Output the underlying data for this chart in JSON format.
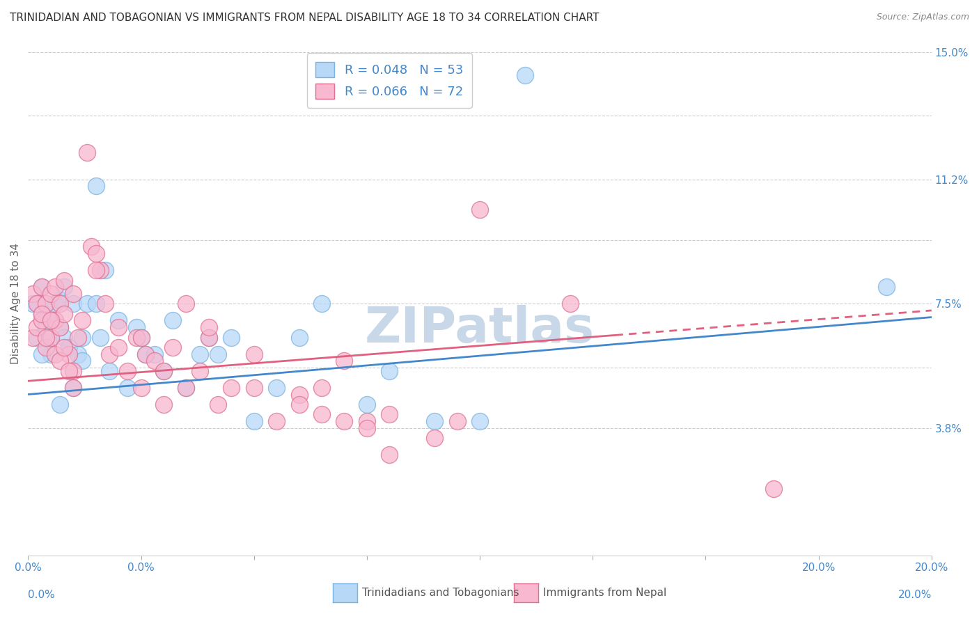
{
  "title": "TRINIDADIAN AND TOBAGONIAN VS IMMIGRANTS FROM NEPAL DISABILITY AGE 18 TO 34 CORRELATION CHART",
  "source": "Source: ZipAtlas.com",
  "ylabel": "Disability Age 18 to 34",
  "xlim": [
    0.0,
    0.2
  ],
  "ylim": [
    0.0,
    0.15
  ],
  "xtick_positions": [
    0.0,
    0.025,
    0.05,
    0.075,
    0.1,
    0.125,
    0.15,
    0.175,
    0.2
  ],
  "xtick_labels_show": {
    "0.0": "0.0%",
    "0.2": "20.0%"
  },
  "yticks": [
    0.0,
    0.038,
    0.056,
    0.075,
    0.094,
    0.112,
    0.131,
    0.15
  ],
  "ytick_labels": [
    "",
    "3.8%",
    "",
    "7.5%",
    "",
    "11.2%",
    "",
    "15.0%"
  ],
  "watermark": "ZIPatlas",
  "legend_entries": [
    {
      "label_r": "R = 0.048",
      "label_n": "N = 53",
      "face_color": "#b8d8f8",
      "edge_color": "#7ab3e0"
    },
    {
      "label_r": "R = 0.066",
      "label_n": "N = 72",
      "face_color": "#f8b8d0",
      "edge_color": "#e07090"
    }
  ],
  "bottom_legend": [
    {
      "label": "Trinidadians and Tobagonians",
      "face_color": "#b8d8f8",
      "edge_color": "#7ab3e0"
    },
    {
      "label": "Immigrants from Nepal",
      "face_color": "#f8b8d0",
      "edge_color": "#e07090"
    }
  ],
  "series": [
    {
      "name": "Trinidadians and Tobagonians",
      "edge_color": "#7ab3e0",
      "face_color": "#b8d8f8",
      "x": [
        0.001,
        0.002,
        0.002,
        0.003,
        0.003,
        0.004,
        0.004,
        0.005,
        0.005,
        0.005,
        0.006,
        0.006,
        0.007,
        0.007,
        0.008,
        0.008,
        0.009,
        0.01,
        0.01,
        0.011,
        0.012,
        0.012,
        0.013,
        0.015,
        0.016,
        0.017,
        0.018,
        0.02,
        0.022,
        0.024,
        0.025,
        0.026,
        0.028,
        0.03,
        0.032,
        0.035,
        0.038,
        0.04,
        0.042,
        0.045,
        0.05,
        0.055,
        0.06,
        0.065,
        0.075,
        0.08,
        0.09,
        0.1,
        0.11,
        0.19,
        0.015,
        0.007,
        0.003
      ],
      "y": [
        0.075,
        0.075,
        0.065,
        0.08,
        0.072,
        0.07,
        0.068,
        0.073,
        0.065,
        0.06,
        0.075,
        0.07,
        0.076,
        0.068,
        0.08,
        0.065,
        0.062,
        0.075,
        0.05,
        0.06,
        0.065,
        0.058,
        0.075,
        0.075,
        0.065,
        0.085,
        0.055,
        0.07,
        0.05,
        0.068,
        0.065,
        0.06,
        0.06,
        0.055,
        0.07,
        0.05,
        0.06,
        0.065,
        0.06,
        0.065,
        0.04,
        0.05,
        0.065,
        0.075,
        0.045,
        0.055,
        0.04,
        0.04,
        0.143,
        0.08,
        0.11,
        0.045,
        0.06
      ]
    },
    {
      "name": "Immigrants from Nepal",
      "edge_color": "#e07090",
      "face_color": "#f8b8d0",
      "x": [
        0.001,
        0.001,
        0.002,
        0.002,
        0.003,
        0.003,
        0.004,
        0.004,
        0.005,
        0.005,
        0.006,
        0.006,
        0.007,
        0.007,
        0.008,
        0.008,
        0.009,
        0.01,
        0.01,
        0.011,
        0.012,
        0.013,
        0.014,
        0.015,
        0.016,
        0.017,
        0.018,
        0.02,
        0.022,
        0.024,
        0.025,
        0.026,
        0.028,
        0.03,
        0.032,
        0.035,
        0.038,
        0.04,
        0.042,
        0.045,
        0.05,
        0.055,
        0.06,
        0.065,
        0.07,
        0.075,
        0.08,
        0.09,
        0.095,
        0.035,
        0.04,
        0.05,
        0.06,
        0.065,
        0.07,
        0.075,
        0.08,
        0.003,
        0.004,
        0.005,
        0.006,
        0.007,
        0.008,
        0.009,
        0.01,
        0.015,
        0.02,
        0.025,
        0.03,
        0.1,
        0.12,
        0.165
      ],
      "y": [
        0.078,
        0.065,
        0.075,
        0.068,
        0.08,
        0.07,
        0.075,
        0.062,
        0.078,
        0.065,
        0.08,
        0.07,
        0.075,
        0.068,
        0.082,
        0.072,
        0.06,
        0.078,
        0.055,
        0.065,
        0.07,
        0.12,
        0.092,
        0.09,
        0.085,
        0.075,
        0.06,
        0.068,
        0.055,
        0.065,
        0.065,
        0.06,
        0.058,
        0.055,
        0.062,
        0.05,
        0.055,
        0.065,
        0.045,
        0.05,
        0.05,
        0.04,
        0.048,
        0.05,
        0.058,
        0.04,
        0.042,
        0.035,
        0.04,
        0.075,
        0.068,
        0.06,
        0.045,
        0.042,
        0.04,
        0.038,
        0.03,
        0.072,
        0.065,
        0.07,
        0.06,
        0.058,
        0.062,
        0.055,
        0.05,
        0.085,
        0.062,
        0.05,
        0.045,
        0.103,
        0.075,
        0.02
      ]
    }
  ],
  "trend_blue": {
    "x_start": 0.0,
    "y_start": 0.048,
    "x_end": 0.2,
    "y_end": 0.071,
    "color": "#4488cc",
    "linewidth": 2.0
  },
  "trend_pink": {
    "x_start": 0.0,
    "y_start": 0.052,
    "x_end": 0.2,
    "y_end": 0.073,
    "color": "#e06080",
    "linewidth": 2.0,
    "dashed_from": 0.13
  },
  "bg_color": "#ffffff",
  "grid_color": "#cccccc",
  "title_color": "#333333",
  "tick_color": "#4488cc",
  "ylabel_color": "#666666",
  "title_fontsize": 11,
  "axis_label_fontsize": 11,
  "tick_fontsize": 11,
  "watermark_fontsize": 52,
  "watermark_color": "#c8d8e8",
  "source_color": "#888888"
}
